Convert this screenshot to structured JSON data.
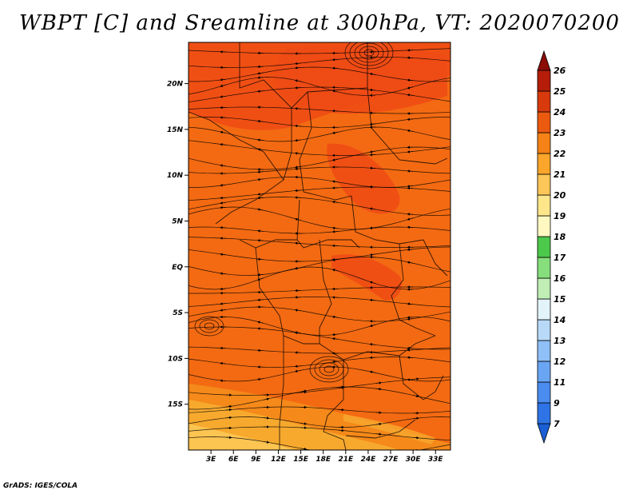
{
  "chart_data": {
    "type": "heatmap",
    "title": "WBPT [C] and Sreamline at 300hPa, VT: 2020070200",
    "x_tick_labels": [
      "3E",
      "6E",
      "9E",
      "12E",
      "15E",
      "18E",
      "21E",
      "24E",
      "27E",
      "30E",
      "33E"
    ],
    "x_values": [
      3,
      6,
      9,
      12,
      15,
      18,
      21,
      24,
      27,
      30,
      33
    ],
    "xlim": [
      0,
      35
    ],
    "y_tick_labels": [
      "20N",
      "15N",
      "10N",
      "5N",
      "EQ",
      "5S",
      "10S",
      "15S"
    ],
    "y_values": [
      20,
      15,
      10,
      5,
      0,
      -5,
      -10,
      -15
    ],
    "ylim": [
      -20,
      24.5
    ],
    "colorbar": {
      "labels": [
        "7",
        "9",
        "11",
        "12",
        "13",
        "14",
        "15",
        "16",
        "17",
        "18",
        "19",
        "20",
        "21",
        "22",
        "23",
        "24",
        "25",
        "26"
      ],
      "colors": [
        "#1a5fd6",
        "#2e74e6",
        "#4a8cef",
        "#6aa5f4",
        "#8fc0f7",
        "#b8daf8",
        "#e2f4fa",
        "#c0eeb4",
        "#86de7c",
        "#4cc84a",
        "#fff8c0",
        "#fde58a",
        "#fcc658",
        "#fba52b",
        "#f58216",
        "#ec5a10",
        "#d83a0e",
        "#b51d0a",
        "#8b0d06"
      ],
      "placement": "right"
    },
    "field_colors": {
      "bg": "#f36a12",
      "hot": "#ee4a15",
      "warm": "#f5891a",
      "cool": "#f7a92e",
      "coolest": "#fcc451"
    },
    "grid": false
  },
  "credit": "GrADS: IGES/COLA"
}
